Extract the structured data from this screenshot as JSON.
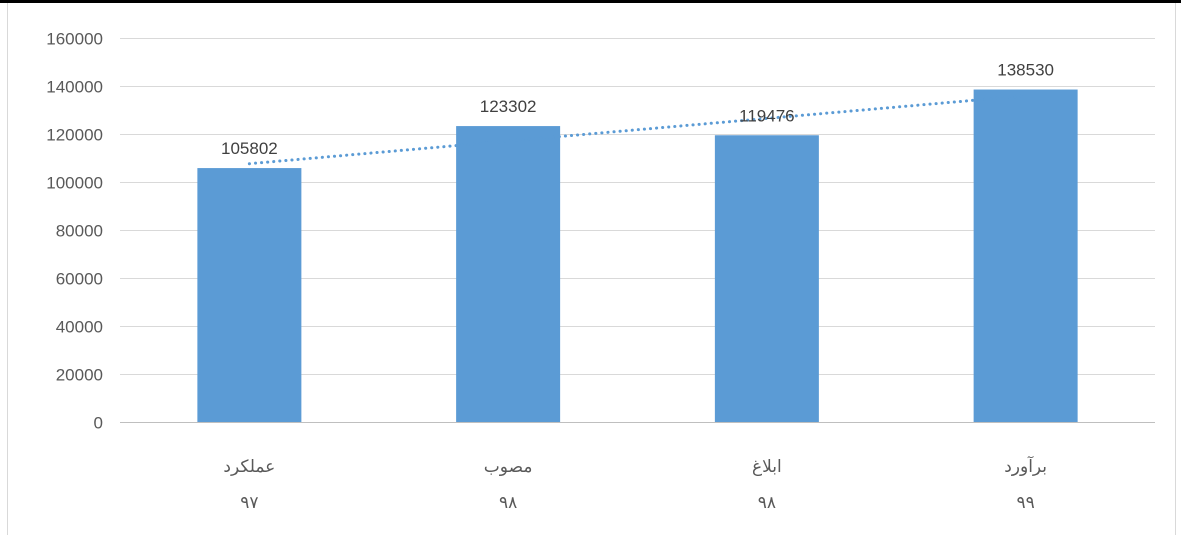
{
  "chart_data": {
    "type": "bar",
    "categories": [
      {
        "name": "عملکرد",
        "year": "۹۷"
      },
      {
        "name": "مصوب",
        "year": "۹۸"
      },
      {
        "name": "ابلاغ",
        "year": "۹۸"
      },
      {
        "name": "برآورد",
        "year": "۹۹"
      }
    ],
    "values": [
      105802,
      123302,
      119476,
      138530
    ],
    "data_labels": [
      "105802",
      "123302",
      "119476",
      "138530"
    ],
    "yticks": [
      0,
      20000,
      40000,
      60000,
      80000,
      100000,
      120000,
      140000,
      160000
    ],
    "ylim": [
      0,
      160000
    ],
    "grid": true,
    "trendline": {
      "type": "linear",
      "style": "dotted"
    },
    "title": "",
    "xlabel": "",
    "ylabel": "",
    "colors": {
      "bar": "#5b9bd5",
      "trendline": "#5b9bd5",
      "grid": "#d9d9d9",
      "axis": "#bfbfbf"
    }
  }
}
